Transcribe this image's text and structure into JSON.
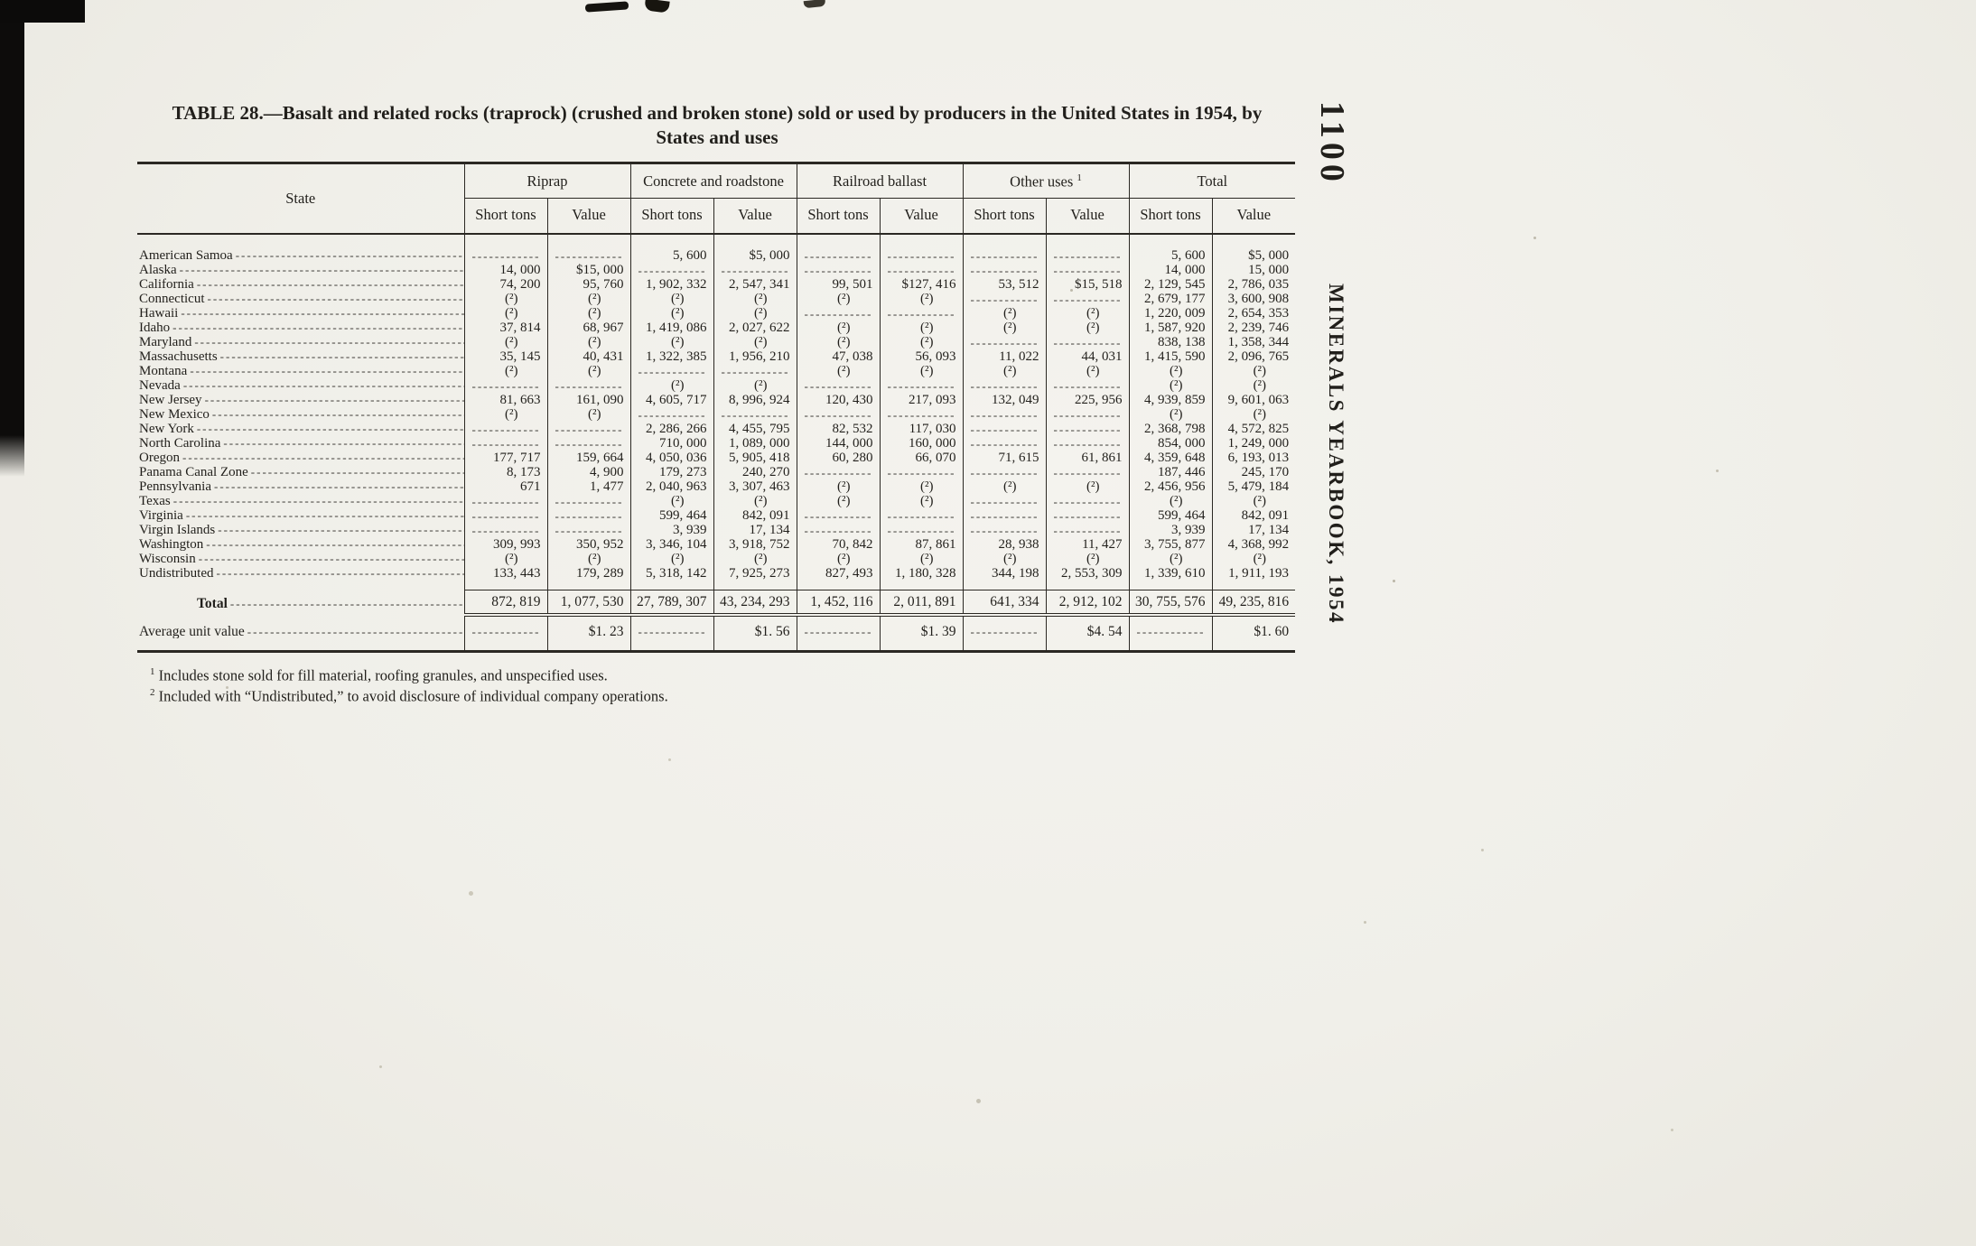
{
  "page": {
    "number": "1100",
    "running_title": "MINERALS YEARBOOK, 1954"
  },
  "table": {
    "title_line1": "TABLE 28.—Basalt and related rocks (traprock) (crushed and broken stone) sold or used by producers in the United States in 1954, by",
    "title_line2": "States and uses",
    "state_header": "State",
    "col_groups": [
      {
        "label": "Riprap"
      },
      {
        "label": "Concrete and roadstone"
      },
      {
        "label": "Railroad ballast"
      },
      {
        "label": "Other uses ",
        "sup": "1"
      },
      {
        "label": "Total"
      }
    ],
    "sub_headers": [
      "Short tons",
      "Value"
    ],
    "rows": [
      {
        "state": "American Samoa",
        "cells": [
          "",
          "",
          "5, 600",
          "$5, 000",
          "",
          "",
          "",
          "",
          "5, 600",
          "$5, 000"
        ]
      },
      {
        "state": "Alaska",
        "cells": [
          "14, 000",
          "$15, 000",
          "",
          "",
          "",
          "",
          "",
          "",
          "14, 000",
          "15, 000"
        ]
      },
      {
        "state": "California",
        "cells": [
          "74, 200",
          "95, 760",
          "1, 902, 332",
          "2, 547, 341",
          "99, 501",
          "$127, 416",
          "53, 512",
          "$15, 518",
          "2, 129, 545",
          "2, 786, 035"
        ]
      },
      {
        "state": "Connecticut",
        "cells": [
          "(²)",
          "(²)",
          "(²)",
          "(²)",
          "(²)",
          "(²)",
          "",
          "",
          "2, 679, 177",
          "3, 600, 908"
        ]
      },
      {
        "state": "Hawaii",
        "cells": [
          "(²)",
          "(²)",
          "(²)",
          "(²)",
          "",
          "",
          "(²)",
          "(²)",
          "1, 220, 009",
          "2, 654, 353"
        ]
      },
      {
        "state": "Idaho",
        "cells": [
          "37, 814",
          "68, 967",
          "1, 419, 086",
          "2, 027, 622",
          "(²)",
          "(²)",
          "(²)",
          "(²)",
          "1, 587, 920",
          "2, 239, 746"
        ]
      },
      {
        "state": "Maryland",
        "cells": [
          "(²)",
          "(²)",
          "(²)",
          "(²)",
          "(²)",
          "(²)",
          "",
          "",
          "838, 138",
          "1, 358, 344"
        ]
      },
      {
        "state": "Massachusetts",
        "cells": [
          "35, 145",
          "40, 431",
          "1, 322, 385",
          "1, 956, 210",
          "47, 038",
          "56, 093",
          "11, 022",
          "44, 031",
          "1, 415, 590",
          "2, 096, 765"
        ]
      },
      {
        "state": "Montana",
        "cells": [
          "(²)",
          "(²)",
          "",
          "",
          "(²)",
          "(²)",
          "(²)",
          "(²)",
          "(²)",
          "(²)"
        ]
      },
      {
        "state": "Nevada",
        "cells": [
          "",
          "",
          "(²)",
          "(²)",
          "",
          "",
          "",
          "",
          "(²)",
          "(²)"
        ]
      },
      {
        "state": "New Jersey",
        "cells": [
          "81, 663",
          "161, 090",
          "4, 605, 717",
          "8, 996, 924",
          "120, 430",
          "217, 093",
          "132, 049",
          "225, 956",
          "4, 939, 859",
          "9, 601, 063"
        ]
      },
      {
        "state": "New Mexico",
        "cells": [
          "(²)",
          "(²)",
          "",
          "",
          "",
          "",
          "",
          "",
          "(²)",
          "(²)"
        ]
      },
      {
        "state": "New York",
        "cells": [
          "",
          "",
          "2, 286, 266",
          "4, 455, 795",
          "82, 532",
          "117, 030",
          "",
          "",
          "2, 368, 798",
          "4, 572, 825"
        ]
      },
      {
        "state": "North Carolina",
        "cells": [
          "",
          "",
          "710, 000",
          "1, 089, 000",
          "144, 000",
          "160, 000",
          "",
          "",
          "854, 000",
          "1, 249, 000"
        ]
      },
      {
        "state": "Oregon",
        "cells": [
          "177, 717",
          "159, 664",
          "4, 050, 036",
          "5, 905, 418",
          "60, 280",
          "66, 070",
          "71, 615",
          "61, 861",
          "4, 359, 648",
          "6, 193, 013"
        ]
      },
      {
        "state": "Panama Canal Zone",
        "cells": [
          "8, 173",
          "4, 900",
          "179, 273",
          "240, 270",
          "",
          "",
          "",
          "",
          "187, 446",
          "245, 170"
        ]
      },
      {
        "state": "Pennsylvania",
        "cells": [
          "671",
          "1, 477",
          "2, 040, 963",
          "3, 307, 463",
          "(²)",
          "(²)",
          "(²)",
          "(²)",
          "2, 456, 956",
          "5, 479, 184"
        ]
      },
      {
        "state": "Texas",
        "cells": [
          "",
          "",
          "(²)",
          "(²)",
          "(²)",
          "(²)",
          "",
          "",
          "(²)",
          "(²)"
        ]
      },
      {
        "state": "Virginia",
        "cells": [
          "",
          "",
          "599, 464",
          "842, 091",
          "",
          "",
          "",
          "",
          "599, 464",
          "842, 091"
        ]
      },
      {
        "state": "Virgin Islands",
        "cells": [
          "",
          "",
          "3, 939",
          "17, 134",
          "",
          "",
          "",
          "",
          "3, 939",
          "17, 134"
        ]
      },
      {
        "state": "Washington",
        "cells": [
          "309, 993",
          "350, 952",
          "3, 346, 104",
          "3, 918, 752",
          "70, 842",
          "87, 861",
          "28, 938",
          "11, 427",
          "3, 755, 877",
          "4, 368, 992"
        ]
      },
      {
        "state": "Wisconsin",
        "cells": [
          "(²)",
          "(²)",
          "(²)",
          "(²)",
          "(²)",
          "(²)",
          "(²)",
          "(²)",
          "(²)",
          "(²)"
        ]
      },
      {
        "state": "Undistributed",
        "cells": [
          "133, 443",
          "179, 289",
          "5, 318, 142",
          "7, 925, 273",
          "827, 493",
          "1, 180, 328",
          "344, 198",
          "2, 553, 309",
          "1, 339, 610",
          "1, 911, 193"
        ]
      }
    ],
    "total_row": {
      "label": "Total",
      "cells": [
        "872, 819",
        "1, 077, 530",
        "27, 789, 307",
        "43, 234, 293",
        "1, 452, 116",
        "2, 011, 891",
        "641, 334",
        "2, 912, 102",
        "30, 755, 576",
        "49, 235, 816"
      ]
    },
    "average_row": {
      "label": "Average unit value",
      "cells": [
        "",
        "$1. 23",
        "",
        "$1. 56",
        "",
        "$1. 39",
        "",
        "$4. 54",
        "",
        "$1. 60"
      ]
    },
    "footnotes": [
      {
        "sup": "1",
        "text": " Includes stone sold for fill material, roofing granules, and unspecified uses."
      },
      {
        "sup": "2",
        "text": " Included with “Undistributed,” to avoid disclosure of individual company operations."
      }
    ]
  },
  "colors": {
    "ink": "#211f1b",
    "paper": "#f0efe9"
  }
}
